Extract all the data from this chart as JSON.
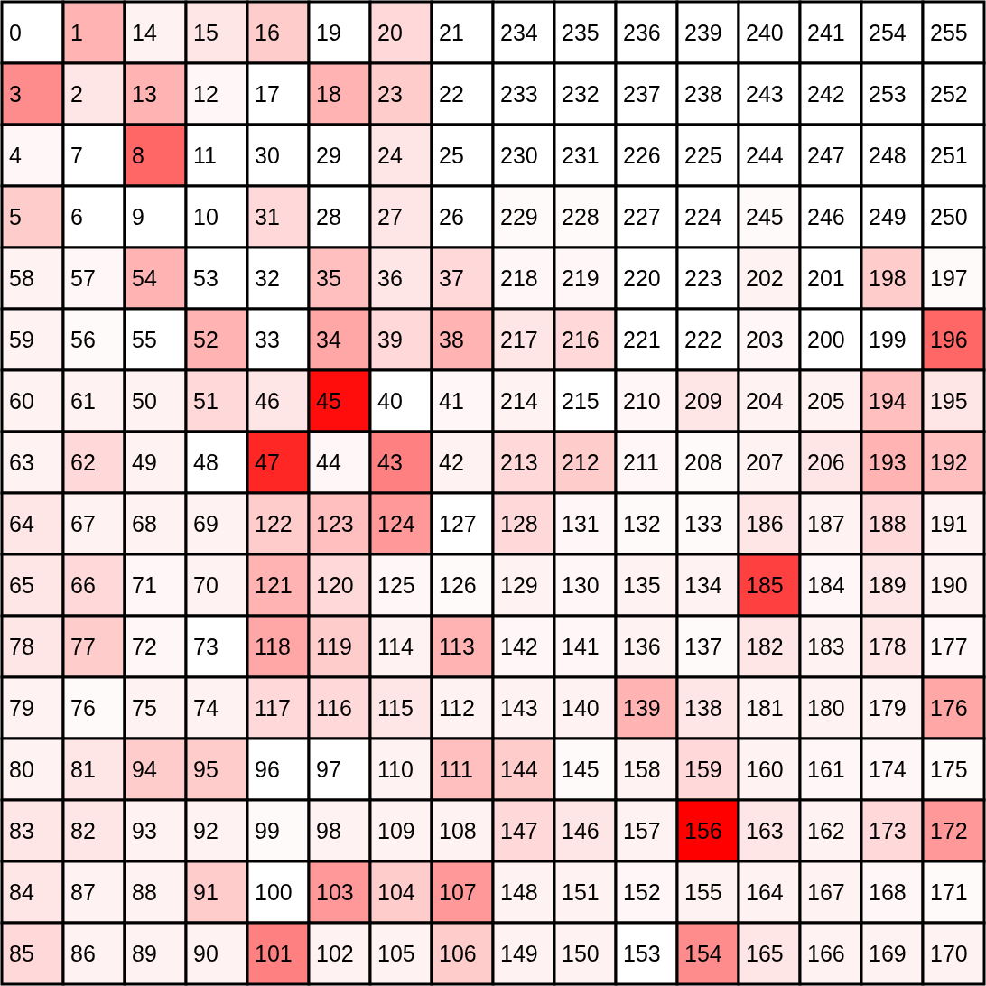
{
  "chart_data": {
    "type": "heatmap",
    "data_labels": true,
    "categories": [
      null,
      null,
      null,
      null,
      null,
      null,
      null,
      null,
      null,
      null,
      null,
      null,
      null,
      null,
      null,
      null
    ],
    "y_categories": [
      null,
      null,
      null,
      null,
      null,
      null,
      null,
      null,
      null,
      null,
      null,
      null,
      null,
      null,
      null,
      null
    ],
    "cells": [
      [
        0,
        1,
        14,
        15,
        16,
        19,
        20,
        21,
        234,
        235,
        236,
        239,
        240,
        241,
        254,
        255
      ],
      [
        3,
        2,
        13,
        12,
        17,
        18,
        23,
        22,
        233,
        232,
        237,
        238,
        243,
        242,
        253,
        252
      ],
      [
        4,
        7,
        8,
        11,
        30,
        29,
        24,
        25,
        230,
        231,
        226,
        225,
        244,
        247,
        248,
        251
      ],
      [
        5,
        6,
        9,
        10,
        31,
        28,
        27,
        26,
        229,
        228,
        227,
        224,
        245,
        246,
        249,
        250
      ],
      [
        58,
        57,
        54,
        53,
        32,
        35,
        36,
        37,
        218,
        219,
        220,
        223,
        202,
        201,
        198,
        197
      ],
      [
        59,
        56,
        55,
        52,
        33,
        34,
        39,
        38,
        217,
        216,
        221,
        222,
        203,
        200,
        199,
        196
      ],
      [
        60,
        61,
        50,
        51,
        46,
        45,
        40,
        41,
        214,
        215,
        210,
        209,
        204,
        205,
        194,
        195
      ],
      [
        63,
        62,
        49,
        48,
        47,
        44,
        43,
        42,
        213,
        212,
        211,
        208,
        207,
        206,
        193,
        192
      ],
      [
        64,
        67,
        68,
        69,
        122,
        123,
        124,
        127,
        128,
        131,
        132,
        133,
        186,
        187,
        188,
        191
      ],
      [
        65,
        66,
        71,
        70,
        121,
        120,
        125,
        126,
        129,
        130,
        135,
        134,
        185,
        184,
        189,
        190
      ],
      [
        78,
        77,
        72,
        73,
        118,
        119,
        114,
        113,
        142,
        141,
        136,
        137,
        182,
        183,
        178,
        177
      ],
      [
        79,
        76,
        75,
        74,
        117,
        116,
        115,
        112,
        143,
        140,
        139,
        138,
        181,
        180,
        179,
        176
      ],
      [
        80,
        81,
        94,
        95,
        96,
        97,
        110,
        111,
        144,
        145,
        158,
        159,
        160,
        161,
        174,
        175
      ],
      [
        83,
        82,
        93,
        92,
        99,
        98,
        109,
        108,
        147,
        146,
        157,
        156,
        163,
        162,
        173,
        172
      ],
      [
        84,
        87,
        88,
        91,
        100,
        103,
        104,
        107,
        148,
        151,
        152,
        155,
        164,
        167,
        168,
        171
      ],
      [
        85,
        86,
        89,
        90,
        101,
        102,
        105,
        106,
        149,
        150,
        153,
        154,
        165,
        166,
        169,
        170
      ]
    ],
    "colors": [
      [
        "#ffffff",
        "#ffb3b3",
        "#fff2f2",
        "#ffe6e6",
        "#ffcccc",
        "#ffffff",
        "#ffd9d9",
        "#ffffff",
        "#ffffff",
        "#ffffff",
        "#ffffff",
        "#ffffff",
        "#ffffff",
        "#ffffff",
        "#ffffff",
        "#ffffff"
      ],
      [
        "#ff8c8c",
        "#ffe6e6",
        "#ffb3b3",
        "#fff7f7",
        "#ffffff",
        "#ffb3b3",
        "#ffcccc",
        "#ffffff",
        "#ffffff",
        "#ffffff",
        "#ffffff",
        "#ffffff",
        "#ffffff",
        "#ffffff",
        "#ffffff",
        "#ffffff"
      ],
      [
        "#fff7f7",
        "#ffffff",
        "#ff6666",
        "#ffffff",
        "#ffffff",
        "#ffffff",
        "#ffe6e6",
        "#ffffff",
        "#ffffff",
        "#ffffff",
        "#ffffff",
        "#ffffff",
        "#ffffff",
        "#ffffff",
        "#ffffff",
        "#ffffff"
      ],
      [
        "#ffcccc",
        "#ffffff",
        "#ffffff",
        "#ffffff",
        "#ffd9d9",
        "#ffffff",
        "#ffe6e6",
        "#ffffff",
        "#fffafa",
        "#fffafa",
        "#ffffff",
        "#ffffff",
        "#fffafa",
        "#ffffff",
        "#ffffff",
        "#ffffff"
      ],
      [
        "#fff2f2",
        "#fff7f7",
        "#ffb3b3",
        "#ffffff",
        "#ffffff",
        "#ffbfbf",
        "#ffe6e6",
        "#ffd9d9",
        "#fff7f7",
        "#fff7f7",
        "#ffffff",
        "#ffffff",
        "#fff2f2",
        "#ffffff",
        "#ffcccc",
        "#fffafa"
      ],
      [
        "#fff2f2",
        "#fffafa",
        "#ffffff",
        "#ffb3b3",
        "#ffffff",
        "#ffa6a6",
        "#ffd9d9",
        "#ffb3b3",
        "#ffe6e6",
        "#ffd9d9",
        "#ffffff",
        "#ffffff",
        "#fff7f7",
        "#ffffff",
        "#ffffff",
        "#ff6666"
      ],
      [
        "#fff2f2",
        "#fff2f2",
        "#fff2f2",
        "#ffd9d9",
        "#ffe6e6",
        "#ff0d0d",
        "#ffffff",
        "#fff7f7",
        "#fff2f2",
        "#ffffff",
        "#fff7f7",
        "#ffe6e6",
        "#fff2f2",
        "#fff2f2",
        "#ffbfbf",
        "#ffe6e6"
      ],
      [
        "#fff2f2",
        "#ffd9d9",
        "#fff2f2",
        "#ffffff",
        "#ff2626",
        "#fff7f7",
        "#ff8080",
        "#fff2f2",
        "#ffd9d9",
        "#ffcccc",
        "#fff7f7",
        "#fffafa",
        "#fff2f2",
        "#ffe6e6",
        "#ffb3b3",
        "#ffbfbf"
      ],
      [
        "#ffe6e6",
        "#fff2f2",
        "#fff2f2",
        "#fff2f2",
        "#ffcccc",
        "#ffbfbf",
        "#ff9999",
        "#ffffff",
        "#ffd9d9",
        "#fff7f7",
        "#fffafa",
        "#fffafa",
        "#ffe6e6",
        "#fff2f2",
        "#ffd9d9",
        "#fff2f2"
      ],
      [
        "#ffe6e6",
        "#ffd9d9",
        "#fff7f7",
        "#fff2f2",
        "#ffb3b3",
        "#ffd9d9",
        "#fff7f7",
        "#fffafa",
        "#fff2f2",
        "#fff7f7",
        "#fff2f2",
        "#fff2f2",
        "#ff4040",
        "#fff7f7",
        "#ffe6e6",
        "#fff2f2"
      ],
      [
        "#ffe6e6",
        "#ffcccc",
        "#fff7f7",
        "#ffffff",
        "#ffa6a6",
        "#ffcccc",
        "#fff2f2",
        "#ffb3b3",
        "#fff7f7",
        "#fff7f7",
        "#fff2f2",
        "#fffafa",
        "#ffe6e6",
        "#fff2f2",
        "#ffe6e6",
        "#fff7f7"
      ],
      [
        "#fff2f2",
        "#fffafa",
        "#fff2f2",
        "#fff2f2",
        "#ffd9d9",
        "#ffd9d9",
        "#ffe6e6",
        "#fff2f2",
        "#fff2f2",
        "#fff2f2",
        "#ffb3b3",
        "#ffe6e6",
        "#fff2f2",
        "#fff2f2",
        "#fff2f2",
        "#ffa6a6"
      ],
      [
        "#fff2f2",
        "#ffe6e6",
        "#ffcccc",
        "#ffcccc",
        "#ffffff",
        "#ffffff",
        "#fff2f2",
        "#ffbfbf",
        "#ffcccc",
        "#fffafa",
        "#fff2f2",
        "#ffd9d9",
        "#fff2f2",
        "#fff7f7",
        "#fff7f7",
        "#fffafa"
      ],
      [
        "#ffe6e6",
        "#ffe6e6",
        "#fff2f2",
        "#fff2f2",
        "#fffafa",
        "#fff2f2",
        "#fff2f2",
        "#fff2f2",
        "#ffd9d9",
        "#ffe6e6",
        "#fff2f2",
        "#ff0000",
        "#ffe6e6",
        "#fff2f2",
        "#ffd9d9",
        "#ff9999"
      ],
      [
        "#ffe6e6",
        "#fff2f2",
        "#fff2f2",
        "#ffcccc",
        "#ffffff",
        "#ff9999",
        "#ffcccc",
        "#ff9999",
        "#fff2f2",
        "#fff2f2",
        "#fff7f7",
        "#fff2f2",
        "#fff2f2",
        "#fff2f2",
        "#fff7f7",
        "#fffafa"
      ],
      [
        "#ffd9d9",
        "#fff2f2",
        "#fff2f2",
        "#fff2f2",
        "#ff8080",
        "#fff2f2",
        "#fff2f2",
        "#ffcccc",
        "#fff2f2",
        "#fff2f2",
        "#ffffff",
        "#ff8c8c",
        "#ffe6e6",
        "#fff2f2",
        "#fff2f2",
        "#fff2f2"
      ]
    ]
  }
}
